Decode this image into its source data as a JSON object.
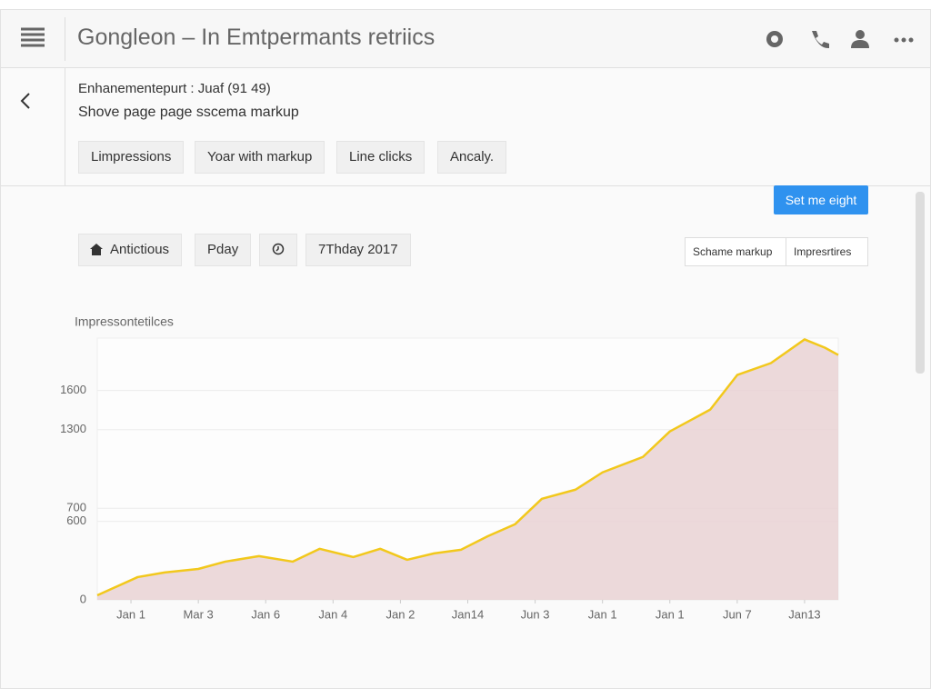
{
  "header": {
    "title": "Gongleon – In Emtpermants retriics"
  },
  "subheader": {
    "line1": "Enhanementepurt : Juaf (91 49)",
    "line2": "Shove page page sscema markup"
  },
  "tabs": [
    "Limpressions",
    "Yoar with markup",
    "Line clicks",
    "Ancaly."
  ],
  "toolbar": {
    "button": "Set me eight",
    "chips": [
      "Antictious",
      "Pday",
      "7Thday 2017"
    ],
    "dropdowns": [
      "Schame markup",
      "Impresrtires"
    ]
  },
  "chart_data": {
    "type": "area",
    "ylabel": "Impressontetilces",
    "x": [
      0,
      0.6,
      1.0,
      1.5,
      1.9,
      2.4,
      2.9,
      3.3,
      3.8,
      4.2,
      4.6,
      5.0,
      5.4,
      5.8,
      6.2,
      6.6,
      7.1,
      7.5,
      8.1,
      8.5,
      9.1,
      9.5,
      10.0,
      10.5,
      10.8,
      11.0
    ],
    "values": [
      35,
      174,
      209,
      236,
      292,
      334,
      292,
      390,
      327,
      390,
      306,
      355,
      383,
      487,
      577,
      772,
      842,
      974,
      1092,
      1287,
      1454,
      1718,
      1809,
      1990,
      1927,
      1871
    ],
    "color": "#f2c81c",
    "fill": "#e9d2d4",
    "xlim": [
      0,
      11
    ],
    "xticks": [
      {
        "value": 0.5,
        "label": "Jan 1"
      },
      {
        "value": 1.5,
        "label": "Mar 3"
      },
      {
        "value": 2.5,
        "label": "Jan 6"
      },
      {
        "value": 3.5,
        "label": "Jan 4"
      },
      {
        "value": 4.5,
        "label": "Jan 2"
      },
      {
        "value": 5.5,
        "label": "Jan14"
      },
      {
        "value": 6.5,
        "label": "Jun 3"
      },
      {
        "value": 7.5,
        "label": "Jan 1"
      },
      {
        "value": 8.5,
        "label": "Jan 1"
      },
      {
        "value": 9.5,
        "label": "Jun 7"
      },
      {
        "value": 10.5,
        "label": "Jan13"
      }
    ],
    "ylim": [
      0,
      2000
    ],
    "yticks": [
      0,
      600,
      700,
      1300,
      1600
    ],
    "grid": true
  }
}
